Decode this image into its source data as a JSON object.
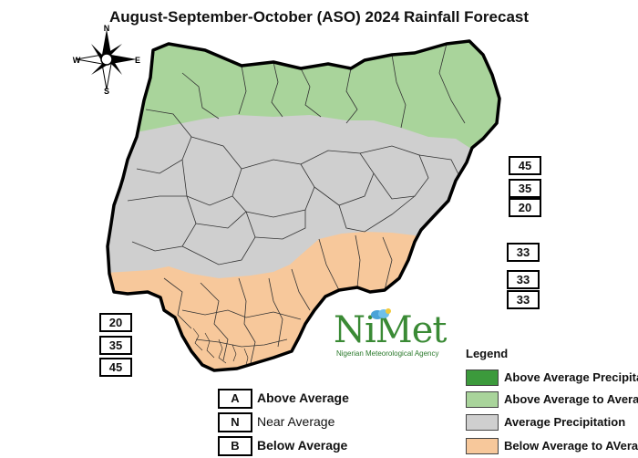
{
  "title": "August-September-October (ASO) 2024 Rainfall Forecast",
  "compass": {
    "n": "N",
    "s": "S",
    "e": "E",
    "w": "W"
  },
  "probability_boxes": {
    "northeast": [
      "45",
      "35",
      "20"
    ],
    "east": [
      "33",
      "33",
      "33"
    ],
    "southwest": [
      "20",
      "35",
      "45"
    ]
  },
  "logo": {
    "main": "NiMet",
    "sub": "Nigerian Meteorological Agency"
  },
  "legend": {
    "title": "Legend",
    "items": [
      {
        "label": "Above Average Precipitation",
        "color": "#3c9a3c"
      },
      {
        "label": "Above Average to Average",
        "color": "#a9d49b"
      },
      {
        "label": "Average Precipitation",
        "color": "#cfcfcf"
      },
      {
        "label": "Below Average to AVerage",
        "color": "#f7c89b"
      }
    ]
  },
  "category_key": [
    {
      "letter": "A",
      "label": "Above Average",
      "bold": true
    },
    {
      "letter": "N",
      "label": "Near Average",
      "bold": false
    },
    {
      "letter": "B",
      "label": "Below Average",
      "bold": true
    }
  ],
  "map_colors": {
    "green": "#a9d49b",
    "grey": "#cfcfcf",
    "orange": "#f7c89b",
    "outline": "#000000"
  }
}
